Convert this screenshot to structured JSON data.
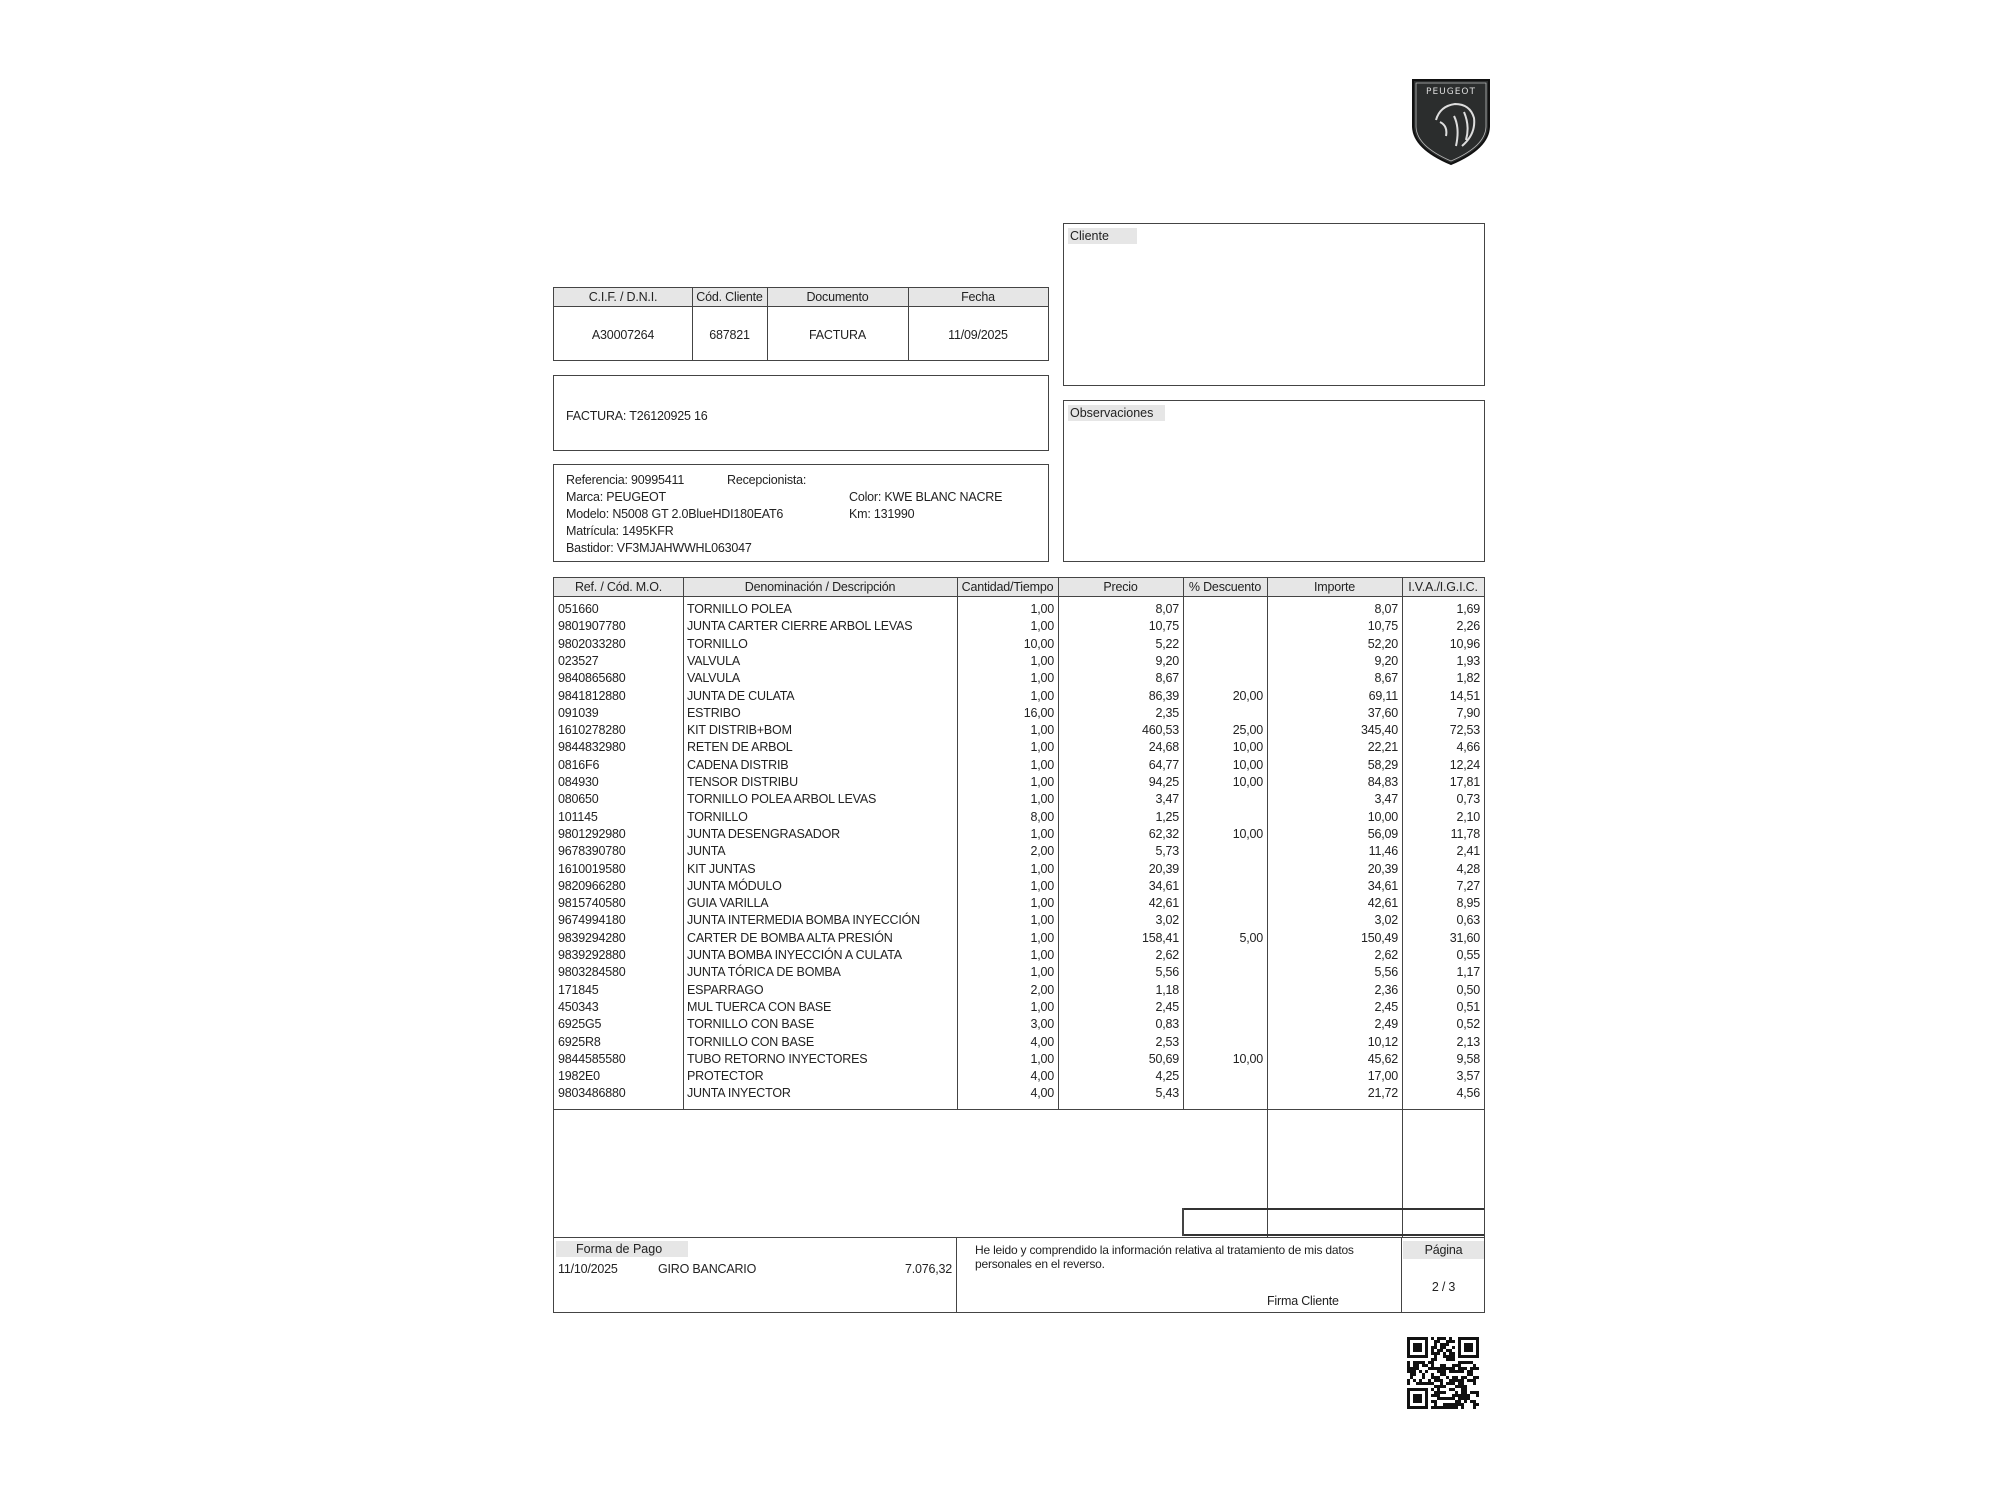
{
  "logo": {
    "text": "PEUGEOT"
  },
  "cliente": {
    "label": "Cliente"
  },
  "observaciones": {
    "label": "Observaciones"
  },
  "doc_header": {
    "columns": [
      "C.I.F. / D.N.I.",
      "Cód. Cliente",
      "Documento",
      "Fecha"
    ],
    "values": [
      "A30007264",
      "687821",
      "FACTURA",
      "11/09/2025"
    ]
  },
  "factura": {
    "text": "FACTURA: T26120925 16"
  },
  "vehicle": {
    "referencia": "Referencia: 90995411",
    "recepcionista": "Recepcionista:",
    "marca": "Marca: PEUGEOT",
    "color": "Color: KWE  BLANC NACRE",
    "modelo": "Modelo: N5008 GT 2.0BlueHDI180EAT6",
    "km": "Km: 131990",
    "matricula": "Matrícula: 1495KFR",
    "bastidor": "Bastidor: VF3MJAHWWHL063047"
  },
  "table": {
    "columns": [
      "Ref. / Cód. M.O.",
      "Denominación / Descripción",
      "Cantidad/Tiempo",
      "Precio",
      "% Descuento",
      "Importe",
      "I.V.A./I.G.I.C."
    ],
    "rows": [
      [
        "051660",
        "TORNILLO POLEA",
        "1,00",
        "8,07",
        "",
        "8,07",
        "1,69"
      ],
      [
        "9801907780",
        "JUNTA CARTER CIERRE ARBOL LEVAS",
        "1,00",
        "10,75",
        "",
        "10,75",
        "2,26"
      ],
      [
        "9802033280",
        "TORNILLO",
        "10,00",
        "5,22",
        "",
        "52,20",
        "10,96"
      ],
      [
        "023527",
        "VALVULA",
        "1,00",
        "9,20",
        "",
        "9,20",
        "1,93"
      ],
      [
        "9840865680",
        "VALVULA",
        "1,00",
        "8,67",
        "",
        "8,67",
        "1,82"
      ],
      [
        "9841812880",
        "JUNTA DE CULATA",
        "1,00",
        "86,39",
        "20,00",
        "69,11",
        "14,51"
      ],
      [
        "091039",
        "ESTRIBO",
        "16,00",
        "2,35",
        "",
        "37,60",
        "7,90"
      ],
      [
        "1610278280",
        "KIT DISTRIB+BOM",
        "1,00",
        "460,53",
        "25,00",
        "345,40",
        "72,53"
      ],
      [
        "9844832980",
        "RETEN DE ARBOL",
        "1,00",
        "24,68",
        "10,00",
        "22,21",
        "4,66"
      ],
      [
        "0816F6",
        "CADENA DISTRIB",
        "1,00",
        "64,77",
        "10,00",
        "58,29",
        "12,24"
      ],
      [
        "084930",
        "TENSOR DISTRIBU",
        "1,00",
        "94,25",
        "10,00",
        "84,83",
        "17,81"
      ],
      [
        "080650",
        "TORNILLO POLEA ARBOL LEVAS",
        "1,00",
        "3,47",
        "",
        "3,47",
        "0,73"
      ],
      [
        "101145",
        "TORNILLO",
        "8,00",
        "1,25",
        "",
        "10,00",
        "2,10"
      ],
      [
        "9801292980",
        "JUNTA DESENGRASADOR",
        "1,00",
        "62,32",
        "10,00",
        "56,09",
        "11,78"
      ],
      [
        "9678390780",
        "JUNTA",
        "2,00",
        "5,73",
        "",
        "11,46",
        "2,41"
      ],
      [
        "1610019580",
        "KIT JUNTAS",
        "1,00",
        "20,39",
        "",
        "20,39",
        "4,28"
      ],
      [
        "9820966280",
        "JUNTA MÓDULO",
        "1,00",
        "34,61",
        "",
        "34,61",
        "7,27"
      ],
      [
        "9815740580",
        "GUIA VARILLA",
        "1,00",
        "42,61",
        "",
        "42,61",
        "8,95"
      ],
      [
        "9674994180",
        "JUNTA INTERMEDIA BOMBA INYECCIÓN",
        "1,00",
        "3,02",
        "",
        "3,02",
        "0,63"
      ],
      [
        "9839294280",
        "CARTER DE BOMBA ALTA PRESIÓN",
        "1,00",
        "158,41",
        "5,00",
        "150,49",
        "31,60"
      ],
      [
        "9839292880",
        "JUNTA BOMBA INYECCIÓN A CULATA",
        "1,00",
        "2,62",
        "",
        "2,62",
        "0,55"
      ],
      [
        "9803284580",
        "JUNTA TÓRICA DE BOMBA",
        "1,00",
        "5,56",
        "",
        "5,56",
        "1,17"
      ],
      [
        "171845",
        "ESPARRAGO",
        "2,00",
        "1,18",
        "",
        "2,36",
        "0,50"
      ],
      [
        "450343",
        "MUL TUERCA CON BASE",
        "1,00",
        "2,45",
        "",
        "2,45",
        "0,51"
      ],
      [
        "6925G5",
        "TORNILLO CON BASE",
        "3,00",
        "0,83",
        "",
        "2,49",
        "0,52"
      ],
      [
        "6925R8",
        "TORNILLO CON BASE",
        "4,00",
        "2,53",
        "",
        "10,12",
        "2,13"
      ],
      [
        "9844585580",
        "TUBO RETORNO INYECTORES",
        "1,00",
        "50,69",
        "10,00",
        "45,62",
        "9,58"
      ],
      [
        "1982E0",
        "PROTECTOR",
        "4,00",
        "4,25",
        "",
        "17,00",
        "3,57"
      ],
      [
        "9803486880",
        "JUNTA INYECTOR",
        "4,00",
        "5,43",
        "",
        "21,72",
        "4,56"
      ]
    ]
  },
  "footer": {
    "forma_pago_label": "Forma de Pago",
    "pago_fecha": "11/10/2025",
    "pago_metodo": "GIRO BANCARIO",
    "pago_importe": "7.076,32",
    "privacy_text_1": "He leido y comprendido la información relativa al tratamiento de mis datos",
    "privacy_text_2": "personales en el reverso.",
    "firma_label": "Firma Cliente",
    "pagina_label": "Página",
    "pagina_value": "2 / 3"
  }
}
